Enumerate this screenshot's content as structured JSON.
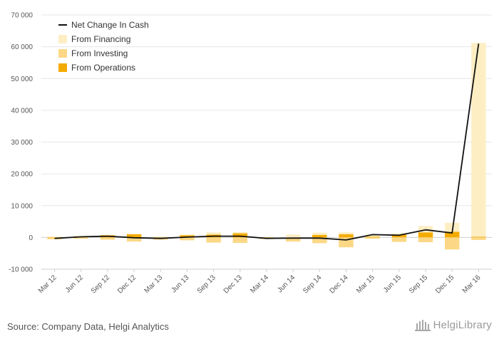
{
  "chart_data": {
    "type": "bar",
    "categories": [
      "Mar 12",
      "Jun 12",
      "Sep 12",
      "Dec 12",
      "Mar 13",
      "Jun 13",
      "Sep 13",
      "Dec 13",
      "Mar 14",
      "Jun 14",
      "Sep 14",
      "Dec 14",
      "Mar 15",
      "Jun 15",
      "Sep 15",
      "Dec 15",
      "Mar 16"
    ],
    "y_ticks": [
      -10000,
      0,
      10000,
      20000,
      30000,
      40000,
      50000,
      60000,
      70000
    ],
    "y_tick_labels": [
      "-10 000",
      "0",
      "10 000",
      "20 000",
      "30 000",
      "40 000",
      "50 000",
      "60 000",
      "70 000"
    ],
    "ylim": [
      -10000,
      70000
    ],
    "grid": true,
    "legend_position": "top-left",
    "series": [
      {
        "name": "From Operations",
        "kind": "bar",
        "color": "#f4ab00",
        "values": [
          -200,
          300,
          700,
          1000,
          -300,
          700,
          900,
          1300,
          -200,
          -200,
          800,
          1000,
          200,
          900,
          1600,
          1800,
          200
        ]
      },
      {
        "name": "From Investing",
        "kind": "bar",
        "color": "#fcd886",
        "values": [
          -400,
          -400,
          -700,
          -1300,
          -400,
          -900,
          -1600,
          -1700,
          -300,
          -1100,
          -1800,
          -3100,
          -400,
          -1400,
          -1500,
          -3800,
          -800
        ]
      },
      {
        "name": "From Financing",
        "kind": "bar",
        "color": "#fdeec4",
        "values": [
          300,
          200,
          100,
          200,
          300,
          200,
          700,
          400,
          0,
          900,
          700,
          600,
          700,
          400,
          2000,
          2800,
          61000
        ]
      },
      {
        "name": "Net Change In Cash",
        "kind": "line",
        "color": "#111111",
        "values": [
          -300,
          200,
          400,
          -100,
          -300,
          100,
          400,
          400,
          -300,
          -200,
          -200,
          -800,
          900,
          700,
          2400,
          1400,
          61000
        ]
      }
    ]
  },
  "legend": [
    {
      "label": "Net Change In Cash",
      "kind": "line",
      "color": "#111111"
    },
    {
      "label": "From Financing",
      "kind": "box",
      "color": "#fdeec4"
    },
    {
      "label": "From Investing",
      "kind": "box",
      "color": "#fcd886"
    },
    {
      "label": "From Operations",
      "kind": "box",
      "color": "#f4ab00"
    }
  ],
  "footer": {
    "source": "Source: Company Data, Helgi Analytics",
    "brand": "HelgiLibrary"
  }
}
